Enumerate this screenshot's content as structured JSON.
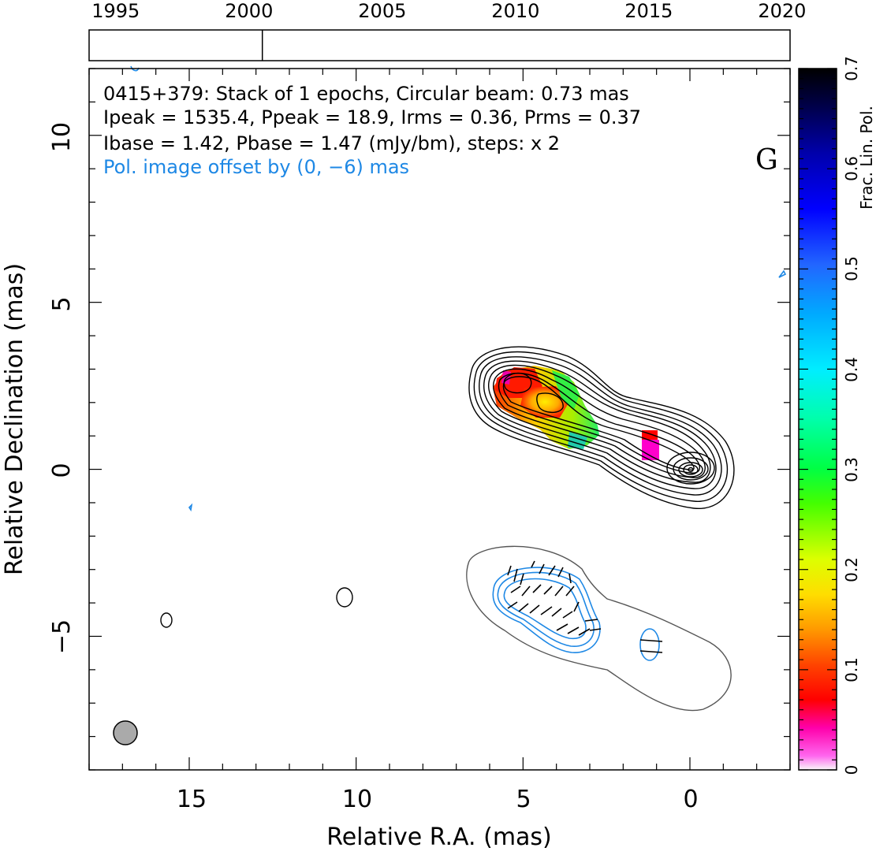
{
  "chart_data": {
    "type": "contour",
    "xlabel": "Relative R.A. (mas)",
    "ylabel": "Relative Declination (mas)",
    "xlim": [
      18.0,
      -3.0
    ],
    "ylim": [
      -9.0,
      12.0
    ],
    "x_ticks": [
      "15",
      "10",
      "5",
      "0"
    ],
    "y_ticks": [
      "10",
      "5",
      "0",
      "−5"
    ],
    "header_lines": [
      "0415+379: Stack of 1 epochs, Circular beam: 0.73 mas",
      "Ipeak = 1535.4, Ppeak = 18.9, Irms = 0.36, Prms = 0.37",
      "Ibase = 1.42, Pbase = 1.47 (mJy/bm), steps: x 2"
    ],
    "offset_note": "Pol. image offset by (0, −6) mas",
    "panel_letter": "G",
    "timeline": {
      "years": [
        "1995",
        "2000",
        "2005",
        "2010",
        "2015",
        "2020"
      ],
      "range": [
        1994.0,
        2020.3
      ],
      "epoch_markers": [
        2000.5
      ]
    },
    "colorbar": {
      "label": "Frac. Lin. Pol.",
      "ticks": [
        "0",
        "0.1",
        "0.2",
        "0.3",
        "0.4",
        "0.5",
        "0.6",
        "0.7"
      ],
      "range": [
        0,
        0.7
      ]
    },
    "beam_diameter_mas": 0.73,
    "colors": {
      "stokes_I_contours": "#000000",
      "pol_contours": "#1e88e5",
      "pol_base_contour": "#555555",
      "offset_note": "#1e88e5",
      "beam_fill": "#aaaaaa"
    }
  }
}
